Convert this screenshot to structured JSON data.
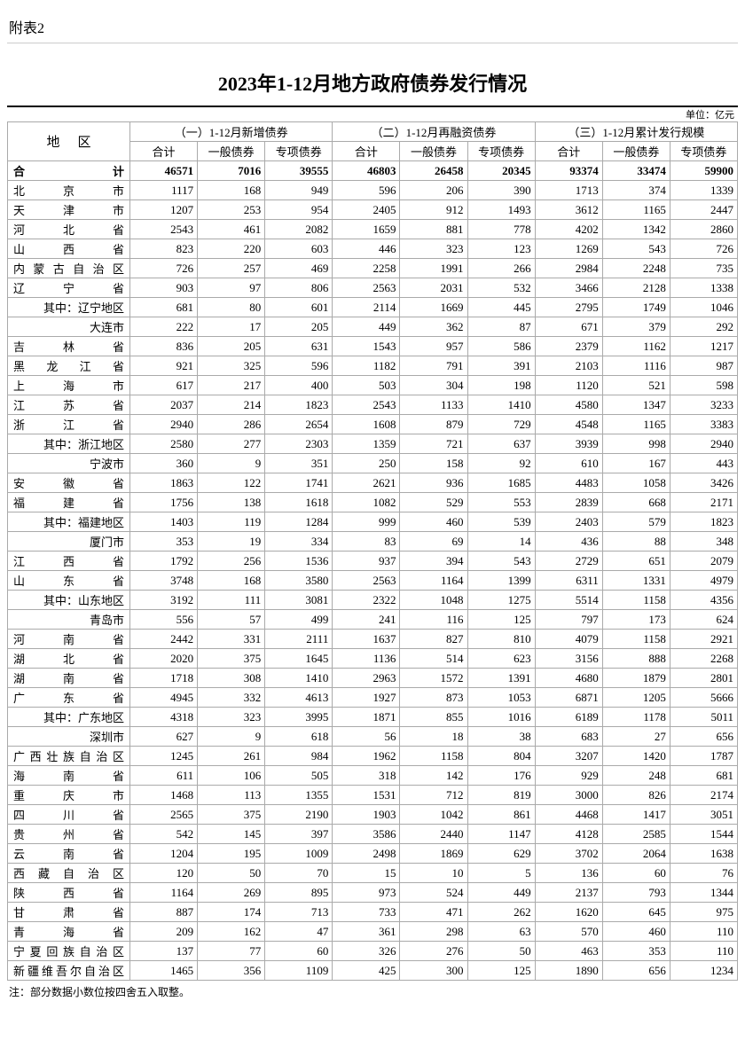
{
  "appendix_label": "附表2",
  "title": "2023年1-12月地方政府债券发行情况",
  "unit_label": "单位：亿元",
  "region_header": "地区",
  "group_headers": [
    "（一）1-12月新增债券",
    "（二）1-12月再融资债券",
    "（三）1-12月累计发行规模"
  ],
  "sub_headers": [
    "合计",
    "一般债券",
    "专项债券",
    "合计",
    "一般债券",
    "专项债券",
    "合计",
    "一般债券",
    "专项债券"
  ],
  "note": "注：部分数据小数位按四舍五入取整。",
  "total_row": {
    "label": "合计",
    "v": [
      "46571",
      "7016",
      "39555",
      "46803",
      "26458",
      "20345",
      "93374",
      "33474",
      "59900"
    ]
  },
  "rows": [
    {
      "label": "北京市",
      "v": [
        "1117",
        "168",
        "949",
        "596",
        "206",
        "390",
        "1713",
        "374",
        "1339"
      ]
    },
    {
      "label": "天津市",
      "v": [
        "1207",
        "253",
        "954",
        "2405",
        "912",
        "1493",
        "3612",
        "1165",
        "2447"
      ]
    },
    {
      "label": "河北省",
      "v": [
        "2543",
        "461",
        "2082",
        "1659",
        "881",
        "778",
        "4202",
        "1342",
        "2860"
      ]
    },
    {
      "label": "山西省",
      "v": [
        "823",
        "220",
        "603",
        "446",
        "323",
        "123",
        "1269",
        "543",
        "726"
      ]
    },
    {
      "label": "内蒙古自治区",
      "v": [
        "726",
        "257",
        "469",
        "2258",
        "1991",
        "266",
        "2984",
        "2248",
        "735"
      ]
    },
    {
      "label": "辽宁省",
      "v": [
        "903",
        "97",
        "806",
        "2563",
        "2031",
        "532",
        "3466",
        "2128",
        "1338"
      ]
    },
    {
      "label": "其中：辽宁地区",
      "indent": true,
      "v": [
        "681",
        "80",
        "601",
        "2114",
        "1669",
        "445",
        "2795",
        "1749",
        "1046"
      ]
    },
    {
      "label": "大连市",
      "indent": true,
      "v": [
        "222",
        "17",
        "205",
        "449",
        "362",
        "87",
        "671",
        "379",
        "292"
      ]
    },
    {
      "label": "吉林省",
      "v": [
        "836",
        "205",
        "631",
        "1543",
        "957",
        "586",
        "2379",
        "1162",
        "1217"
      ]
    },
    {
      "label": "黑龙江省",
      "v": [
        "921",
        "325",
        "596",
        "1182",
        "791",
        "391",
        "2103",
        "1116",
        "987"
      ]
    },
    {
      "label": "上海市",
      "v": [
        "617",
        "217",
        "400",
        "503",
        "304",
        "198",
        "1120",
        "521",
        "598"
      ]
    },
    {
      "label": "江苏省",
      "v": [
        "2037",
        "214",
        "1823",
        "2543",
        "1133",
        "1410",
        "4580",
        "1347",
        "3233"
      ]
    },
    {
      "label": "浙江省",
      "v": [
        "2940",
        "286",
        "2654",
        "1608",
        "879",
        "729",
        "4548",
        "1165",
        "3383"
      ]
    },
    {
      "label": "其中：浙江地区",
      "indent": true,
      "v": [
        "2580",
        "277",
        "2303",
        "1359",
        "721",
        "637",
        "3939",
        "998",
        "2940"
      ]
    },
    {
      "label": "宁波市",
      "indent": true,
      "v": [
        "360",
        "9",
        "351",
        "250",
        "158",
        "92",
        "610",
        "167",
        "443"
      ]
    },
    {
      "label": "安徽省",
      "v": [
        "1863",
        "122",
        "1741",
        "2621",
        "936",
        "1685",
        "4483",
        "1058",
        "3426"
      ]
    },
    {
      "label": "福建省",
      "v": [
        "1756",
        "138",
        "1618",
        "1082",
        "529",
        "553",
        "2839",
        "668",
        "2171"
      ]
    },
    {
      "label": "其中：福建地区",
      "indent": true,
      "v": [
        "1403",
        "119",
        "1284",
        "999",
        "460",
        "539",
        "2403",
        "579",
        "1823"
      ]
    },
    {
      "label": "厦门市",
      "indent": true,
      "v": [
        "353",
        "19",
        "334",
        "83",
        "69",
        "14",
        "436",
        "88",
        "348"
      ]
    },
    {
      "label": "江西省",
      "v": [
        "1792",
        "256",
        "1536",
        "937",
        "394",
        "543",
        "2729",
        "651",
        "2079"
      ]
    },
    {
      "label": "山东省",
      "v": [
        "3748",
        "168",
        "3580",
        "2563",
        "1164",
        "1399",
        "6311",
        "1331",
        "4979"
      ]
    },
    {
      "label": "其中：山东地区",
      "indent": true,
      "v": [
        "3192",
        "111",
        "3081",
        "2322",
        "1048",
        "1275",
        "5514",
        "1158",
        "4356"
      ]
    },
    {
      "label": "青岛市",
      "indent": true,
      "v": [
        "556",
        "57",
        "499",
        "241",
        "116",
        "125",
        "797",
        "173",
        "624"
      ]
    },
    {
      "label": "河南省",
      "v": [
        "2442",
        "331",
        "2111",
        "1637",
        "827",
        "810",
        "4079",
        "1158",
        "2921"
      ]
    },
    {
      "label": "湖北省",
      "v": [
        "2020",
        "375",
        "1645",
        "1136",
        "514",
        "623",
        "3156",
        "888",
        "2268"
      ]
    },
    {
      "label": "湖南省",
      "v": [
        "1718",
        "308",
        "1410",
        "2963",
        "1572",
        "1391",
        "4680",
        "1879",
        "2801"
      ]
    },
    {
      "label": "广东省",
      "v": [
        "4945",
        "332",
        "4613",
        "1927",
        "873",
        "1053",
        "6871",
        "1205",
        "5666"
      ]
    },
    {
      "label": "其中：广东地区",
      "indent": true,
      "v": [
        "4318",
        "323",
        "3995",
        "1871",
        "855",
        "1016",
        "6189",
        "1178",
        "5011"
      ]
    },
    {
      "label": "深圳市",
      "indent": true,
      "v": [
        "627",
        "9",
        "618",
        "56",
        "18",
        "38",
        "683",
        "27",
        "656"
      ]
    },
    {
      "label": "广西壮族自治区",
      "v": [
        "1245",
        "261",
        "984",
        "1962",
        "1158",
        "804",
        "3207",
        "1420",
        "1787"
      ]
    },
    {
      "label": "海南省",
      "v": [
        "611",
        "106",
        "505",
        "318",
        "142",
        "176",
        "929",
        "248",
        "681"
      ]
    },
    {
      "label": "重庆市",
      "v": [
        "1468",
        "113",
        "1355",
        "1531",
        "712",
        "819",
        "3000",
        "826",
        "2174"
      ]
    },
    {
      "label": "四川省",
      "v": [
        "2565",
        "375",
        "2190",
        "1903",
        "1042",
        "861",
        "4468",
        "1417",
        "3051"
      ]
    },
    {
      "label": "贵州省",
      "v": [
        "542",
        "145",
        "397",
        "3586",
        "2440",
        "1147",
        "4128",
        "2585",
        "1544"
      ]
    },
    {
      "label": "云南省",
      "v": [
        "1204",
        "195",
        "1009",
        "2498",
        "1869",
        "629",
        "3702",
        "2064",
        "1638"
      ]
    },
    {
      "label": "西藏自治区",
      "v": [
        "120",
        "50",
        "70",
        "15",
        "10",
        "5",
        "136",
        "60",
        "76"
      ]
    },
    {
      "label": "陕西省",
      "v": [
        "1164",
        "269",
        "895",
        "973",
        "524",
        "449",
        "2137",
        "793",
        "1344"
      ]
    },
    {
      "label": "甘肃省",
      "v": [
        "887",
        "174",
        "713",
        "733",
        "471",
        "262",
        "1620",
        "645",
        "975"
      ]
    },
    {
      "label": "青海省",
      "v": [
        "209",
        "162",
        "47",
        "361",
        "298",
        "63",
        "570",
        "460",
        "110"
      ]
    },
    {
      "label": "宁夏回族自治区",
      "v": [
        "137",
        "77",
        "60",
        "326",
        "276",
        "50",
        "463",
        "353",
        "110"
      ]
    },
    {
      "label": "新疆维吾尔自治区",
      "v": [
        "1465",
        "356",
        "1109",
        "425",
        "300",
        "125",
        "1890",
        "656",
        "1234"
      ]
    }
  ]
}
